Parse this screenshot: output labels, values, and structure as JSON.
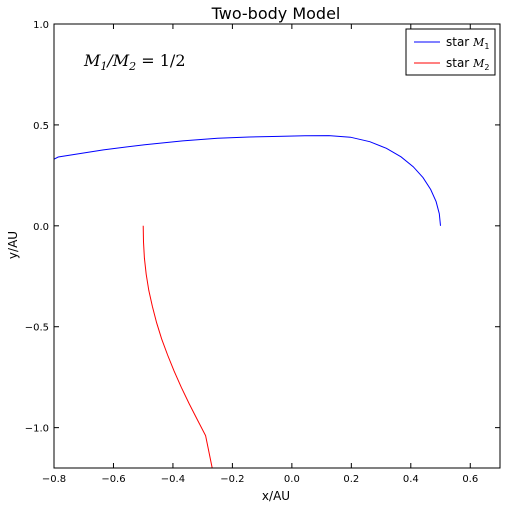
{
  "chart_data": {
    "type": "line",
    "title": "Two-body Model",
    "xlabel": "x/AU",
    "ylabel": "y/AU",
    "xlim": [
      -0.8,
      0.7
    ],
    "ylim": [
      -1.2,
      1.0
    ],
    "xticks": [
      -0.8,
      -0.6,
      -0.4,
      -0.2,
      0.0,
      0.2,
      0.4,
      0.6
    ],
    "xtick_labels": [
      "−0.8",
      "−0.6",
      "−0.4",
      "−0.2",
      "0.0",
      "0.2",
      "0.4",
      "0.6"
    ],
    "yticks": [
      1.0,
      0.5,
      0.0,
      -0.5,
      -1.0
    ],
    "ytick_labels": [
      "1.0",
      "0.5",
      "0.0",
      "−0.5",
      "−1.0"
    ],
    "grid": false,
    "legend_position": "top-right",
    "annotation": {
      "text": "M1/M2 = 1/2"
    },
    "series": [
      {
        "name": "star M1",
        "legend_prefix": "star",
        "legend_symbol": "M",
        "legend_subscript": "1",
        "color": "#0000ff",
        "x": [
          0.5,
          0.496,
          0.485,
          0.467,
          0.441,
          0.408,
          0.367,
          0.318,
          0.262,
          0.197,
          0.125,
          0.044,
          -0.045,
          -0.143,
          -0.25,
          -0.367,
          -0.495,
          -0.634,
          -0.786,
          -0.8
        ],
        "y": [
          0.0,
          0.06,
          0.12,
          0.18,
          0.239,
          0.293,
          0.342,
          0.384,
          0.417,
          0.439,
          0.447,
          0.446,
          0.443,
          0.44,
          0.434,
          0.421,
          0.402,
          0.376,
          0.341,
          0.33
        ]
      },
      {
        "name": "star M2",
        "legend_prefix": "star",
        "legend_symbol": "M",
        "legend_subscript": "2",
        "color": "#ff0000",
        "x": [
          -0.5,
          -0.499,
          -0.496,
          -0.49,
          -0.481,
          -0.469,
          -0.455,
          -0.438,
          -0.418,
          -0.396,
          -0.372,
          -0.346,
          -0.318,
          -0.29,
          -0.268
        ],
        "y": [
          0.0,
          -0.08,
          -0.16,
          -0.24,
          -0.32,
          -0.4,
          -0.48,
          -0.56,
          -0.64,
          -0.72,
          -0.8,
          -0.88,
          -0.96,
          -1.04,
          -1.2
        ]
      }
    ]
  }
}
